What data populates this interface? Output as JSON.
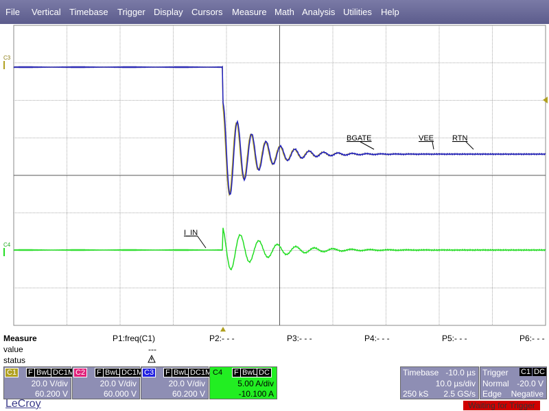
{
  "menu": {
    "items": [
      "File",
      "Vertical",
      "Timebase",
      "Trigger",
      "Display",
      "Cursors",
      "Measure",
      "Math",
      "Analysis",
      "Utilities",
      "Help"
    ]
  },
  "grid": {
    "trace_labels": [
      "BGATE",
      "VEE",
      "RTN",
      "I_IN"
    ],
    "markers": [
      "C3",
      "C4"
    ]
  },
  "measure": {
    "title": "Measure",
    "params": [
      "P1:freq(C1)",
      "P2:- - -",
      "P3:- - -",
      "P4:- - -",
      "P5:- - -",
      "P6:- - -"
    ],
    "rows": [
      "value",
      "status"
    ],
    "value": "---"
  },
  "channels": [
    {
      "name": "C1",
      "flags": [
        "F",
        "BwL",
        "DC1M"
      ],
      "scale": "20.0 V/div",
      "offset": "60.200 V"
    },
    {
      "name": "C2",
      "flags": [
        "F",
        "BwL",
        "DC1M"
      ],
      "scale": "20.0 V/div",
      "offset": "60.000 V"
    },
    {
      "name": "C3",
      "flags": [
        "F",
        "BwL",
        "DC1M"
      ],
      "scale": "20.0 V/div",
      "offset": "60.200 V"
    },
    {
      "name": "C4",
      "flags": [
        "F",
        "BwL",
        "DC"
      ],
      "scale": "5.00 A/div",
      "offset": "-10.100 A"
    }
  ],
  "timebase": {
    "title": "Timebase",
    "delay": "-10.0 µs",
    "scale": "10.0 µs/div",
    "samples": "250 kS",
    "rate": "2.5 GS/s"
  },
  "trigger": {
    "title": "Trigger",
    "source": "C1",
    "coupling": "DC",
    "mode": "Normal",
    "level": "-20.0 V",
    "type": "Edge",
    "slope": "Negative"
  },
  "brand": "LeCroy",
  "status_message": "Waiting for Trigger"
}
